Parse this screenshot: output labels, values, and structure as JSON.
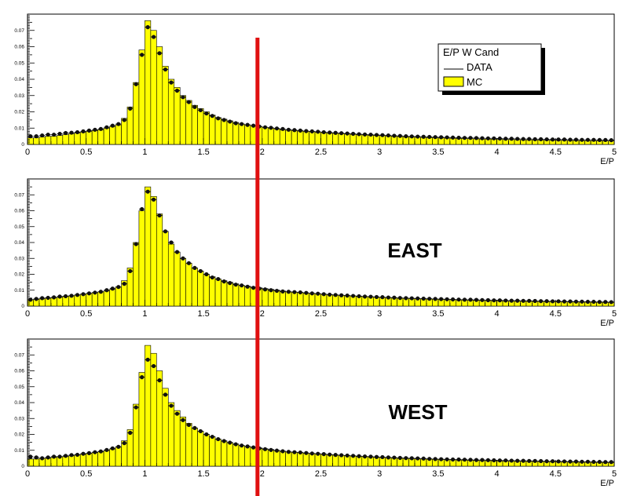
{
  "chart_data": [
    {
      "type": "bar",
      "panel": "top",
      "label": "",
      "xlabel": "E/P",
      "xlim": [
        0,
        5
      ],
      "ylim": [
        0,
        0.08
      ],
      "xticks": [
        "0",
        "0.5",
        "1",
        "1.5",
        "2",
        "2.5",
        "3",
        "3.5",
        "4",
        "4.5",
        "5"
      ],
      "yticks": [
        "0.01",
        "0.02",
        "0.03",
        "0.04",
        "0.05",
        "0.06",
        "0.07"
      ],
      "legend": {
        "title": "E/P W Cand",
        "placement": "top-right",
        "entries": [
          {
            "label": "DATA",
            "style": "line"
          },
          {
            "label": "MC",
            "style": "fill"
          }
        ]
      },
      "cut_line_x": 1.96,
      "bin_width": 0.05,
      "mc_values": [
        0.004,
        0.004,
        0.0045,
        0.005,
        0.005,
        0.0055,
        0.006,
        0.0065,
        0.007,
        0.0075,
        0.008,
        0.0085,
        0.009,
        0.01,
        0.011,
        0.012,
        0.016,
        0.023,
        0.038,
        0.058,
        0.076,
        0.07,
        0.06,
        0.048,
        0.04,
        0.035,
        0.03,
        0.027,
        0.024,
        0.022,
        0.02,
        0.018,
        0.0165,
        0.0155,
        0.0145,
        0.0135,
        0.0125,
        0.012,
        0.0115,
        0.011,
        0.0105,
        0.01,
        0.0095,
        0.009,
        0.0088,
        0.0085,
        0.0082,
        0.008,
        0.0078,
        0.0075,
        0.0072,
        0.007,
        0.0068,
        0.0066,
        0.0064,
        0.0062,
        0.006,
        0.0058,
        0.0056,
        0.0055,
        0.0054,
        0.0052,
        0.005,
        0.0048,
        0.0047,
        0.0046,
        0.0045,
        0.0043,
        0.0042,
        0.0041,
        0.004,
        0.0039,
        0.0038,
        0.0037,
        0.0036,
        0.0035,
        0.0034,
        0.0033,
        0.0033,
        0.0032,
        0.0031,
        0.003,
        0.003,
        0.0029,
        0.0028,
        0.0028,
        0.0027,
        0.0027,
        0.0026,
        0.0026,
        0.0025,
        0.0025,
        0.0024,
        0.0024,
        0.0023,
        0.0023,
        0.0022,
        0.0022,
        0.0021,
        0.0021
      ],
      "data_values": [
        0.005,
        0.005,
        0.0055,
        0.006,
        0.006,
        0.0065,
        0.007,
        0.0072,
        0.0075,
        0.008,
        0.0085,
        0.009,
        0.0095,
        0.0105,
        0.0115,
        0.0125,
        0.015,
        0.022,
        0.037,
        0.055,
        0.072,
        0.066,
        0.056,
        0.046,
        0.038,
        0.033,
        0.029,
        0.026,
        0.023,
        0.021,
        0.019,
        0.0175,
        0.016,
        0.015,
        0.014,
        0.013,
        0.0125,
        0.012,
        0.0115,
        0.011,
        0.0105,
        0.0102,
        0.0098,
        0.0095,
        0.009,
        0.0088,
        0.0085,
        0.0082,
        0.008,
        0.0078,
        0.0075,
        0.0073,
        0.0071,
        0.0069,
        0.0067,
        0.0065,
        0.0063,
        0.0061,
        0.006,
        0.0058,
        0.0057,
        0.0055,
        0.0053,
        0.0052,
        0.005,
        0.0049,
        0.0048,
        0.0047,
        0.0046,
        0.0045,
        0.0044,
        0.0043,
        0.0042,
        0.0041,
        0.004,
        0.004,
        0.0039,
        0.0038,
        0.0037,
        0.0037,
        0.0036,
        0.0035,
        0.0035,
        0.0034,
        0.0033,
        0.0033,
        0.0032,
        0.0032,
        0.0031,
        0.003,
        0.003,
        0.003,
        0.0029,
        0.0029,
        0.0028,
        0.0028,
        0.0028,
        0.0027,
        0.0027,
        0.0026
      ]
    },
    {
      "type": "bar",
      "panel": "middle",
      "label": "EAST",
      "xlabel": "E/P",
      "xlim": [
        0,
        5
      ],
      "ylim": [
        0,
        0.08
      ],
      "xticks": [
        "0",
        "0.5",
        "1",
        "1.5",
        "2",
        "2.5",
        "3",
        "3.5",
        "4",
        "4.5",
        "5"
      ],
      "yticks": [
        "0.01",
        "0.02",
        "0.03",
        "0.04",
        "0.05",
        "0.06",
        "0.07"
      ],
      "cut_line_x": 1.96,
      "bin_width": 0.05,
      "mc_values": [
        0.004,
        0.0042,
        0.0045,
        0.005,
        0.0052,
        0.0055,
        0.006,
        0.0065,
        0.007,
        0.0075,
        0.008,
        0.0085,
        0.009,
        0.0095,
        0.0105,
        0.012,
        0.016,
        0.024,
        0.04,
        0.06,
        0.075,
        0.069,
        0.058,
        0.047,
        0.039,
        0.034,
        0.03,
        0.027,
        0.024,
        0.022,
        0.02,
        0.0185,
        0.017,
        0.016,
        0.015,
        0.014,
        0.013,
        0.0125,
        0.012,
        0.0115,
        0.011,
        0.0105,
        0.01,
        0.0095,
        0.009,
        0.0088,
        0.0085,
        0.0082,
        0.008,
        0.0078,
        0.0075,
        0.0072,
        0.007,
        0.0068,
        0.0066,
        0.0064,
        0.0062,
        0.006,
        0.0058,
        0.0056,
        0.0055,
        0.0053,
        0.0052,
        0.005,
        0.0049,
        0.0047,
        0.0046,
        0.0045,
        0.0044,
        0.0043,
        0.0042,
        0.0041,
        0.004,
        0.0039,
        0.0038,
        0.0037,
        0.0036,
        0.0035,
        0.0035,
        0.0034,
        0.0033,
        0.0032,
        0.0032,
        0.0031,
        0.003,
        0.003,
        0.0029,
        0.0029,
        0.0028,
        0.0028,
        0.0027,
        0.0027,
        0.0026,
        0.0026,
        0.0025,
        0.0025,
        0.0024,
        0.0024,
        0.0023,
        0.0023
      ],
      "data_values": [
        0.004,
        0.0045,
        0.005,
        0.0052,
        0.0055,
        0.006,
        0.0062,
        0.0065,
        0.007,
        0.0075,
        0.008,
        0.0085,
        0.009,
        0.01,
        0.011,
        0.012,
        0.014,
        0.022,
        0.039,
        0.061,
        0.072,
        0.067,
        0.057,
        0.047,
        0.04,
        0.034,
        0.03,
        0.027,
        0.024,
        0.022,
        0.02,
        0.018,
        0.017,
        0.0155,
        0.0145,
        0.0135,
        0.013,
        0.0122,
        0.0115,
        0.011,
        0.0105,
        0.01,
        0.0096,
        0.0092,
        0.009,
        0.0088,
        0.0086,
        0.0083,
        0.008,
        0.0078,
        0.0075,
        0.0072,
        0.007,
        0.0068,
        0.0066,
        0.0064,
        0.0062,
        0.006,
        0.0059,
        0.0057,
        0.0056,
        0.0054,
        0.0053,
        0.0051,
        0.005,
        0.0049,
        0.0048,
        0.0047,
        0.0046,
        0.0045,
        0.0044,
        0.0043,
        0.0042,
        0.0041,
        0.004,
        0.004,
        0.0039,
        0.0038,
        0.0037,
        0.0036,
        0.0036,
        0.0035,
        0.0034,
        0.0034,
        0.0033,
        0.0033,
        0.0032,
        0.0031,
        0.0031,
        0.003,
        0.003,
        0.0029,
        0.0029,
        0.0028,
        0.0028,
        0.0027,
        0.0027,
        0.0026,
        0.0026,
        0.0025
      ]
    },
    {
      "type": "bar",
      "panel": "bottom",
      "label": "WEST",
      "xlabel": "E/P",
      "xlim": [
        0,
        5
      ],
      "ylim": [
        0,
        0.08
      ],
      "xticks": [
        "0",
        "0.5",
        "1",
        "1.5",
        "2",
        "2.5",
        "3",
        "3.5",
        "4",
        "4.5",
        "5"
      ],
      "yticks": [
        "0.01",
        "0.02",
        "0.03",
        "0.04",
        "0.05",
        "0.06",
        "0.07"
      ],
      "cut_line_x": 1.96,
      "bin_width": 0.05,
      "mc_values": [
        0.0045,
        0.0045,
        0.005,
        0.005,
        0.0055,
        0.006,
        0.006,
        0.0065,
        0.007,
        0.0075,
        0.008,
        0.0085,
        0.009,
        0.0098,
        0.0108,
        0.012,
        0.016,
        0.023,
        0.039,
        0.059,
        0.076,
        0.071,
        0.06,
        0.049,
        0.04,
        0.035,
        0.031,
        0.027,
        0.024,
        0.022,
        0.02,
        0.0185,
        0.017,
        0.016,
        0.015,
        0.014,
        0.013,
        0.0125,
        0.012,
        0.0115,
        0.011,
        0.0105,
        0.01,
        0.0095,
        0.009,
        0.0088,
        0.0085,
        0.0082,
        0.008,
        0.0078,
        0.0075,
        0.0072,
        0.007,
        0.0068,
        0.0066,
        0.0064,
        0.0062,
        0.006,
        0.0058,
        0.0056,
        0.0055,
        0.0053,
        0.0052,
        0.005,
        0.0049,
        0.0047,
        0.0046,
        0.0045,
        0.0044,
        0.0043,
        0.0042,
        0.0041,
        0.004,
        0.0039,
        0.0038,
        0.0037,
        0.0036,
        0.0035,
        0.0035,
        0.0034,
        0.0033,
        0.0032,
        0.0032,
        0.0031,
        0.003,
        0.003,
        0.0029,
        0.0029,
        0.0028,
        0.0028,
        0.0027,
        0.0027,
        0.0026,
        0.0026,
        0.0025,
        0.0025,
        0.0024,
        0.0024,
        0.0023,
        0.0023
      ],
      "data_values": [
        0.006,
        0.0055,
        0.005,
        0.0055,
        0.006,
        0.006,
        0.0065,
        0.007,
        0.0072,
        0.0078,
        0.0082,
        0.0088,
        0.0093,
        0.0102,
        0.0112,
        0.0122,
        0.0145,
        0.021,
        0.037,
        0.056,
        0.067,
        0.063,
        0.054,
        0.045,
        0.038,
        0.033,
        0.029,
        0.026,
        0.024,
        0.022,
        0.02,
        0.0185,
        0.017,
        0.0158,
        0.0148,
        0.0138,
        0.013,
        0.0124,
        0.0118,
        0.0112,
        0.0107,
        0.0102,
        0.0098,
        0.0094,
        0.009,
        0.0088,
        0.0086,
        0.0083,
        0.008,
        0.0078,
        0.0076,
        0.0073,
        0.0071,
        0.0069,
        0.0067,
        0.0065,
        0.0063,
        0.0061,
        0.006,
        0.0058,
        0.0057,
        0.0055,
        0.0054,
        0.0052,
        0.0051,
        0.005,
        0.0049,
        0.0048,
        0.0046,
        0.0045,
        0.0044,
        0.0043,
        0.0042,
        0.0042,
        0.0041,
        0.004,
        0.0039,
        0.0039,
        0.0038,
        0.0037,
        0.0036,
        0.0036,
        0.0035,
        0.0034,
        0.0034,
        0.0033,
        0.0033,
        0.0032,
        0.0031,
        0.0031,
        0.003,
        0.003,
        0.0029,
        0.0029,
        0.0028,
        0.0028,
        0.0027,
        0.0027,
        0.0026,
        0.0026
      ]
    }
  ],
  "colors": {
    "mc_fill": "#ffff00",
    "data_marker": "#111111",
    "cut_line": "#e01010",
    "axis": "#000000",
    "legend_shadow": "#000000"
  }
}
